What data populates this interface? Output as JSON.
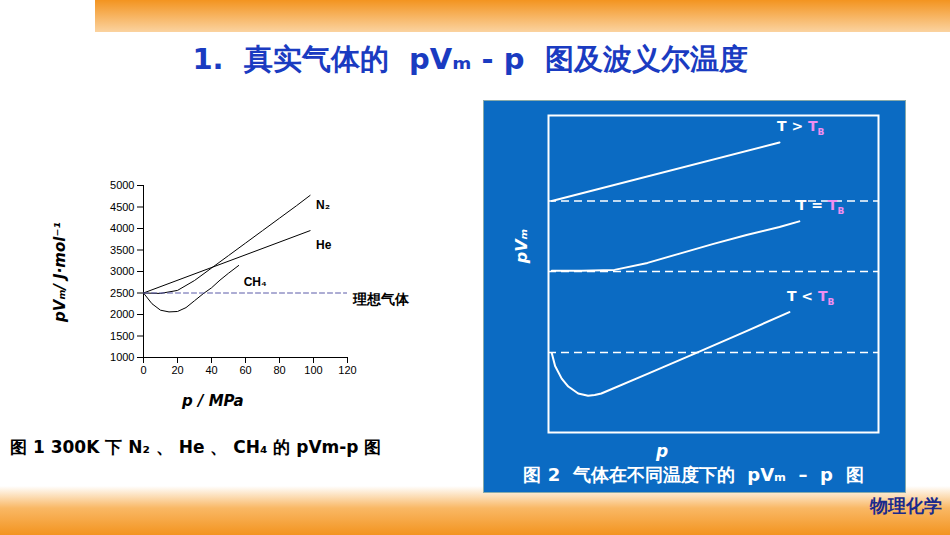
{
  "slide": {
    "title": "1.  真实气体的  pVₘ - p  图及波义尔温度",
    "footer": "物理化学"
  },
  "chart_data": [
    {
      "type": "line",
      "caption": "图 1 300K 下 N₂ 、 He 、 CH₄ 的 pVm-p 图",
      "x_label": "p / MPa",
      "y_label": "pVₘ/ J·mol⁻¹",
      "xlim": [
        0,
        120
      ],
      "xticks": [
        0,
        20,
        40,
        60,
        80,
        100,
        120
      ],
      "ylim": [
        1000,
        5000
      ],
      "yticks": [
        1000,
        1500,
        2000,
        2500,
        3000,
        3500,
        4000,
        4500,
        5000
      ],
      "series": [
        {
          "name": "N₂",
          "color": "#000000",
          "line_style": "solid",
          "x": [
            0,
            10,
            20,
            30,
            40,
            50,
            60,
            70,
            80,
            90,
            98
          ],
          "values": [
            2500,
            2490,
            2560,
            2790,
            3080,
            3370,
            3660,
            3950,
            4240,
            4530,
            4770
          ]
        },
        {
          "name": "He",
          "color": "#000000",
          "line_style": "solid",
          "x": [
            0,
            98
          ],
          "values": [
            2500,
            3950
          ]
        },
        {
          "name": "CH₄",
          "color": "#000000",
          "line_style": "solid",
          "x": [
            0,
            5,
            10,
            15,
            20,
            25,
            30,
            35,
            40,
            45,
            50,
            56
          ],
          "values": [
            2500,
            2250,
            2100,
            2060,
            2070,
            2160,
            2320,
            2480,
            2620,
            2800,
            2960,
            3140
          ]
        },
        {
          "name": "理想气体",
          "color": "#5b5ba8",
          "line_style": "dashed",
          "x": [
            0,
            120
          ],
          "values": [
            2500,
            2500
          ]
        }
      ]
    },
    {
      "type": "line",
      "caption": "图 2  气体在不同温度下的  pVₘ  –  p  图",
      "x_label": "p",
      "y_label": "pVₘ",
      "tick_labels": false,
      "xlim": [
        0,
        100
      ],
      "ylim": [
        0,
        100
      ],
      "series": [
        {
          "name": "T > TB",
          "color": "#ffffff",
          "baseline": 73,
          "x": [
            1,
            70
          ],
          "values": [
            73,
            91.5
          ]
        },
        {
          "name": "T = TB",
          "color": "#ffffff",
          "baseline": 50.8,
          "x": [
            1,
            10,
            20,
            30,
            40,
            50,
            60,
            70,
            76
          ],
          "values": [
            51,
            51,
            51.3,
            53.5,
            56.5,
            59.5,
            62.3,
            64.8,
            66.6
          ]
        },
        {
          "name": "T < TB",
          "color": "#ffffff",
          "baseline": 25.2,
          "x": [
            1,
            2,
            4,
            6,
            9,
            12,
            14,
            16,
            30,
            45,
            60,
            73
          ],
          "values": [
            25,
            21,
            17,
            14.5,
            12.3,
            11.6,
            11.8,
            12.3,
            18.5,
            25.2,
            32,
            38
          ]
        }
      ]
    }
  ]
}
